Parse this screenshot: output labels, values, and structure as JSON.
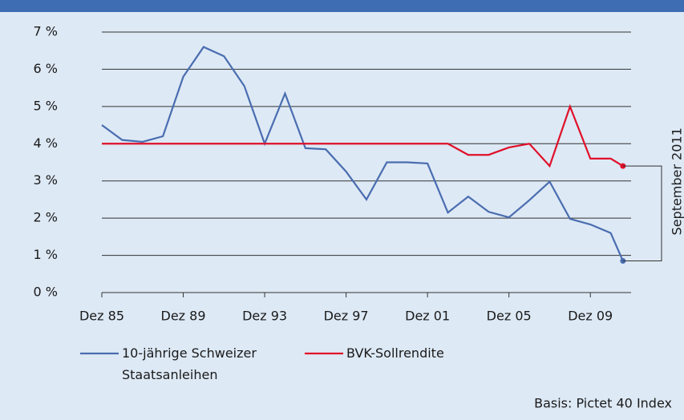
{
  "chart_data": {
    "type": "line",
    "x": [
      1985,
      1986,
      1987,
      1988,
      1989,
      1990,
      1991,
      1992,
      1993,
      1994,
      1995,
      1996,
      1997,
      1998,
      1999,
      2000,
      2001,
      2002,
      2003,
      2004,
      2005,
      2006,
      2007,
      2008,
      2009,
      2010,
      2010.6
    ],
    "series": [
      {
        "name": "10-jährige Schweizer Staatsanleihen",
        "color": "#4a6db0",
        "values": [
          4.5,
          4.1,
          4.05,
          4.2,
          5.8,
          6.6,
          6.35,
          5.55,
          4.0,
          5.35,
          3.88,
          3.85,
          3.25,
          2.5,
          3.5,
          3.5,
          3.47,
          2.15,
          2.58,
          2.17,
          2.02,
          2.48,
          2.98,
          1.98,
          1.83,
          1.6,
          0.85
        ]
      },
      {
        "name": "BVK-Sollrendite",
        "color": "#e0102a",
        "values": [
          4,
          4,
          4,
          4,
          4,
          4,
          4,
          4,
          4,
          4,
          4,
          4,
          4,
          4,
          4,
          4,
          4,
          4,
          3.7,
          3.7,
          3.9,
          4.0,
          3.4,
          5.0,
          3.6,
          3.6,
          3.4
        ]
      }
    ],
    "xlim": [
      1985,
      2011
    ],
    "xticks": [
      {
        "value": 1985,
        "label": "Dez 85"
      },
      {
        "value": 1989,
        "label": "Dez 89"
      },
      {
        "value": 1993,
        "label": "Dez 93"
      },
      {
        "value": 1997,
        "label": "Dez 97"
      },
      {
        "value": 2001,
        "label": "Dez 01"
      },
      {
        "value": 2005,
        "label": "Dez 05"
      },
      {
        "value": 2009,
        "label": "Dez 09"
      }
    ],
    "ylim": [
      0,
      7
    ],
    "yticks": [
      {
        "value": 0,
        "label": "0 %"
      },
      {
        "value": 1,
        "label": "1 %"
      },
      {
        "value": 2,
        "label": "2 %"
      },
      {
        "value": 3,
        "label": "3 %"
      },
      {
        "value": 4,
        "label": "4 %"
      },
      {
        "value": 5,
        "label": "5 %"
      },
      {
        "value": 6,
        "label": "6 %"
      },
      {
        "value": 7,
        "label": "7 %"
      }
    ],
    "grid": true,
    "annotation": "September 2011",
    "source": "Basis: Pictet 40 Index"
  }
}
